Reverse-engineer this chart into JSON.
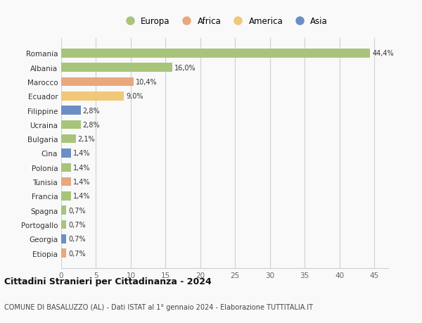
{
  "categories": [
    "Romania",
    "Albania",
    "Marocco",
    "Ecuador",
    "Filippine",
    "Ucraina",
    "Bulgaria",
    "Cina",
    "Polonia",
    "Tunisia",
    "Francia",
    "Spagna",
    "Portogallo",
    "Georgia",
    "Etiopia"
  ],
  "values": [
    44.4,
    16.0,
    10.4,
    9.0,
    2.8,
    2.8,
    2.1,
    1.4,
    1.4,
    1.4,
    1.4,
    0.7,
    0.7,
    0.7,
    0.7
  ],
  "labels": [
    "44,4%",
    "16,0%",
    "10,4%",
    "9,0%",
    "2,8%",
    "2,8%",
    "2,1%",
    "1,4%",
    "1,4%",
    "1,4%",
    "1,4%",
    "0,7%",
    "0,7%",
    "0,7%",
    "0,7%"
  ],
  "colors": [
    "#a8c47a",
    "#a8c47a",
    "#e8a87c",
    "#f0c878",
    "#6b8fc4",
    "#a8c47a",
    "#a8c47a",
    "#6b8fc4",
    "#a8c47a",
    "#e8a87c",
    "#a8c47a",
    "#a8c47a",
    "#a8c47a",
    "#6b8fc4",
    "#e8a87c"
  ],
  "legend": [
    {
      "label": "Europa",
      "color": "#a8c47a"
    },
    {
      "label": "Africa",
      "color": "#e8a87c"
    },
    {
      "label": "America",
      "color": "#f0c878"
    },
    {
      "label": "Asia",
      "color": "#6b8fc4"
    }
  ],
  "xlim": [
    0,
    47
  ],
  "xticks": [
    0,
    5,
    10,
    15,
    20,
    25,
    30,
    35,
    40,
    45
  ],
  "title1": "Cittadini Stranieri per Cittadinanza - 2024",
  "title2": "COMUNE DI BASALUZZO (AL) - Dati ISTAT al 1° gennaio 2024 - Elaborazione TUTTITALIA.IT",
  "background_color": "#f9f9f9",
  "grid_color": "#d0d0d0",
  "bar_height": 0.62
}
